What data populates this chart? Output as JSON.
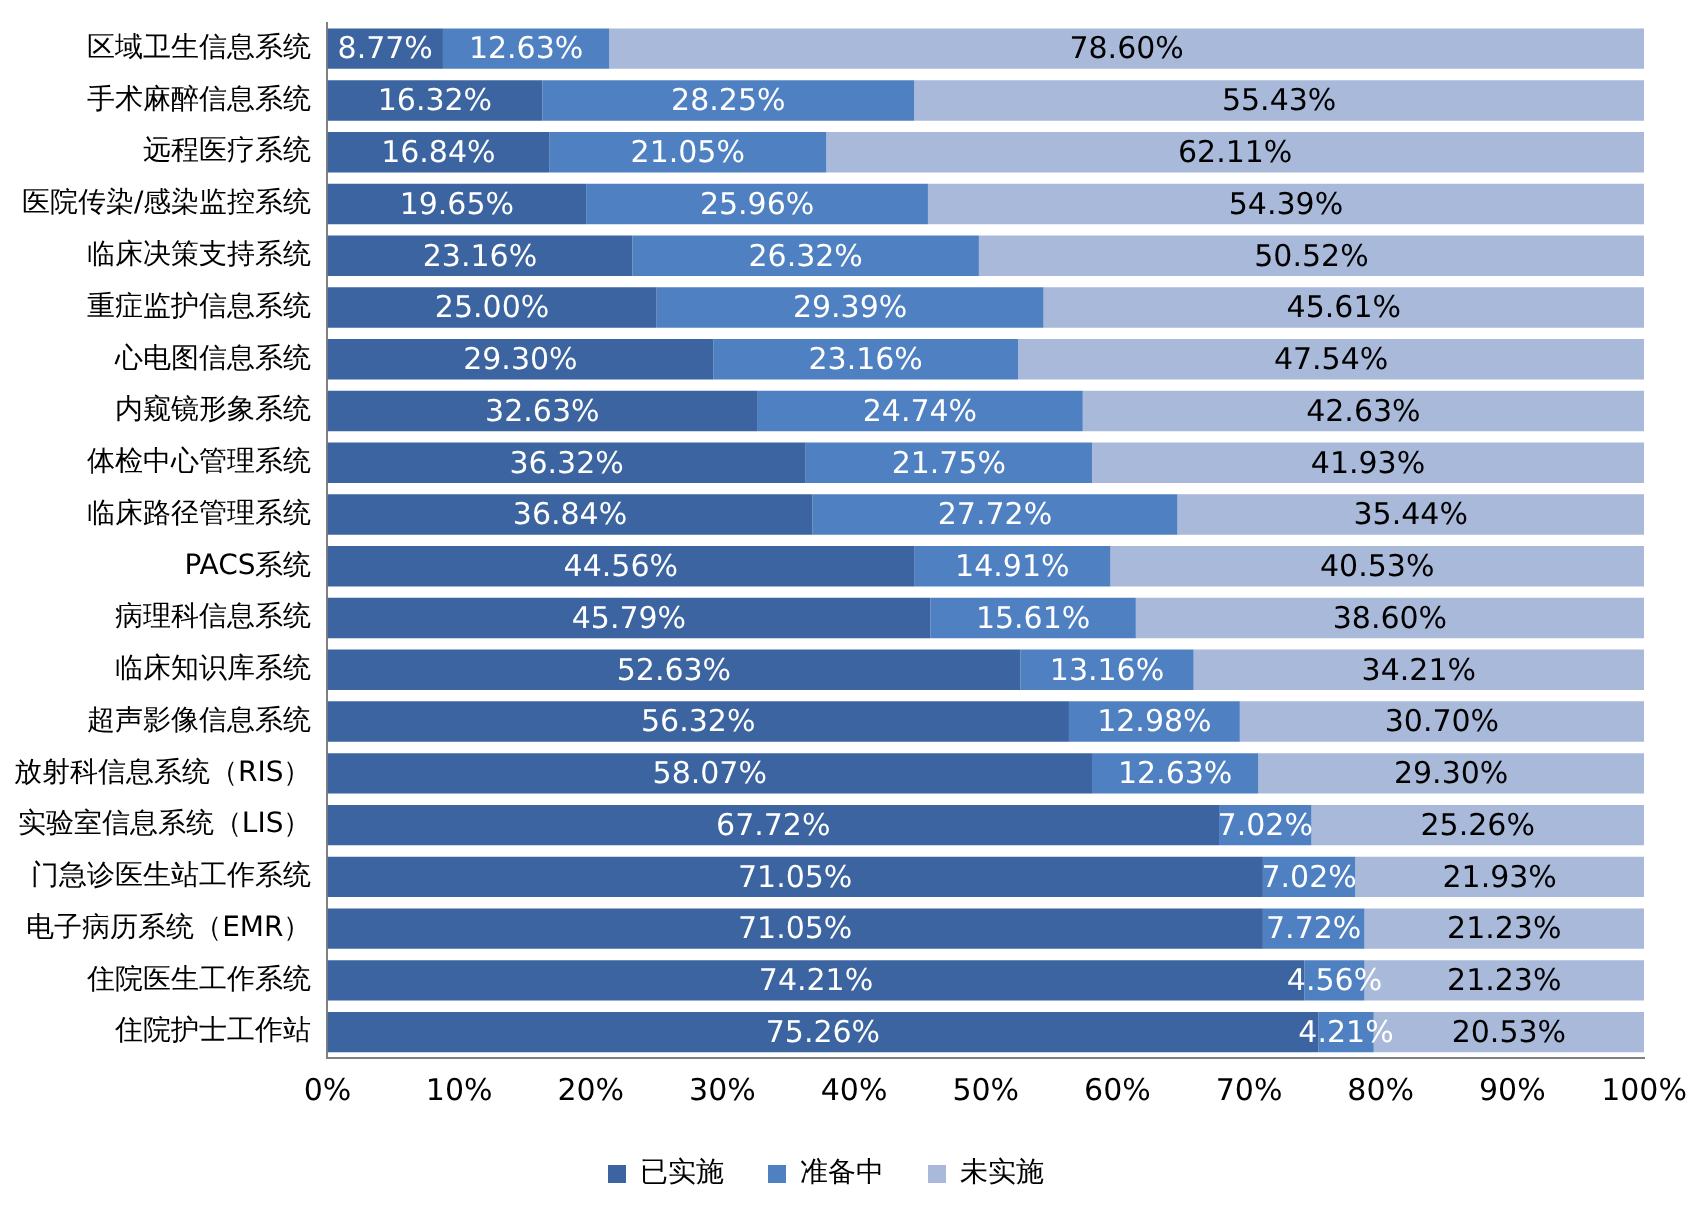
{
  "chart_data": {
    "type": "bar",
    "orientation": "horizontal",
    "stacked": true,
    "grid": false,
    "legend": "bottom",
    "categories": [
      "区域卫生信息系统",
      "手术麻醉信息系统",
      "远程医疗系统",
      "医院传染/感染监控系统",
      "临床决策支持系统",
      "重症监护信息系统",
      "心电图信息系统",
      "内窥镜形象系统",
      "体检中心管理系统",
      "临床路径管理系统",
      "PACS系统",
      "病理科信息系统",
      "临床知识库系统",
      "超声影像信息系统",
      "放射科信息系统（RIS）",
      "实验室信息系统（LIS）",
      "门急诊医生站工作系统",
      "电子病历系统（EMR）",
      "住院医生工作系统",
      "住院护士工作站"
    ],
    "xlim": [
      0,
      100
    ],
    "xticks": [
      {
        "value": 0,
        "label": "0%"
      },
      {
        "value": 10,
        "label": "10%"
      },
      {
        "value": 20,
        "label": "20%"
      },
      {
        "value": 30,
        "label": "30%"
      },
      {
        "value": 40,
        "label": "40%"
      },
      {
        "value": 50,
        "label": "50%"
      },
      {
        "value": 60,
        "label": "60%"
      },
      {
        "value": 70,
        "label": "70%"
      },
      {
        "value": 80,
        "label": "80%"
      },
      {
        "value": 90,
        "label": "90%"
      },
      {
        "value": 100,
        "label": "100%"
      }
    ],
    "series": [
      {
        "name": "已实施",
        "color": "#3b64a0",
        "values": [
          8.77,
          16.32,
          16.84,
          19.65,
          23.16,
          25.0,
          29.3,
          32.63,
          36.32,
          36.84,
          44.56,
          45.79,
          52.63,
          56.32,
          58.07,
          67.72,
          71.05,
          71.05,
          74.21,
          75.26
        ],
        "value_labels": [
          "8.77%",
          "16.32%",
          "16.84%",
          "19.65%",
          "23.16%",
          "25.00%",
          "29.30%",
          "32.63%",
          "36.32%",
          "36.84%",
          "44.56%",
          "45.79%",
          "52.63%",
          "56.32%",
          "58.07%",
          "67.72%",
          "71.05%",
          "71.05%",
          "74.21%",
          "75.26%"
        ]
      },
      {
        "name": "准备中",
        "color": "#4f81c2",
        "values": [
          12.63,
          28.25,
          21.05,
          25.96,
          26.32,
          29.39,
          23.16,
          24.74,
          21.75,
          27.72,
          14.91,
          15.61,
          13.16,
          12.98,
          12.63,
          7.02,
          7.02,
          7.72,
          4.56,
          4.21
        ],
        "value_labels": [
          "12.63%",
          "28.25%",
          "21.05%",
          "25.96%",
          "26.32%",
          "29.39%",
          "23.16%",
          "24.74%",
          "21.75%",
          "27.72%",
          "14.91%",
          "15.61%",
          "13.16%",
          "12.98%",
          "12.63%",
          "7.02%",
          "7.02%",
          "7.72%",
          "4.56%",
          "4.21%"
        ]
      },
      {
        "name": "未实施",
        "color": "#a9b9da",
        "values": [
          78.6,
          55.43,
          62.11,
          54.39,
          50.52,
          45.61,
          47.54,
          42.63,
          41.93,
          35.44,
          40.53,
          38.6,
          34.21,
          30.7,
          29.3,
          25.26,
          21.93,
          21.23,
          21.23,
          20.53
        ],
        "value_labels": [
          "78.60%",
          "55.43%",
          "62.11%",
          "54.39%",
          "50.52%",
          "45.61%",
          "47.54%",
          "42.63%",
          "41.93%",
          "35.44%",
          "40.53%",
          "38.60%",
          "34.21%",
          "30.70%",
          "29.30%",
          "25.26%",
          "21.93%",
          "21.23%",
          "21.23%",
          "20.53%"
        ]
      }
    ]
  }
}
